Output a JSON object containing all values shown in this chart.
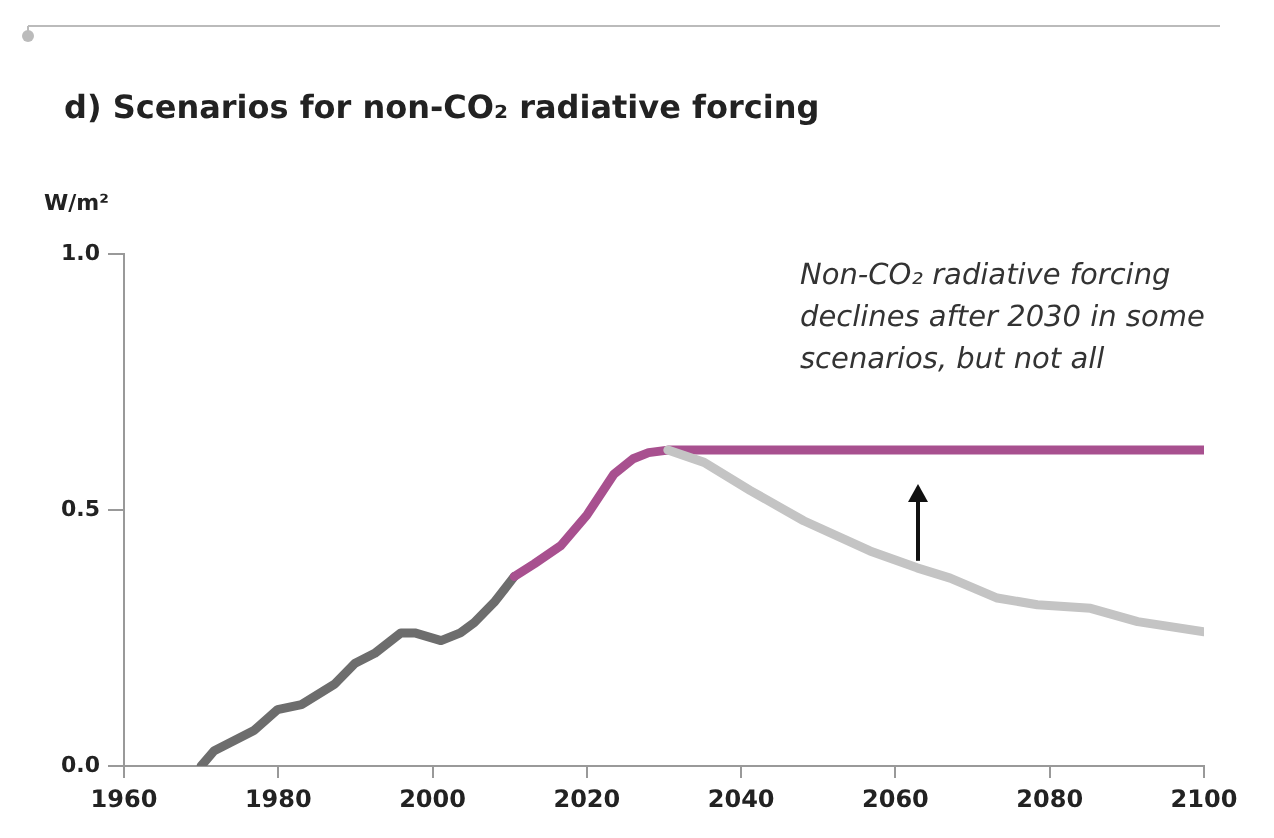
{
  "chart_data": {
    "type": "line",
    "title": "d) Scenarios for non-CO₂ radiative forcing",
    "ylabel": "W/m²",
    "xlim": [
      1960,
      2100
    ],
    "xticks": [
      1960,
      1980,
      2000,
      2020,
      2040,
      2060,
      2080,
      2100
    ],
    "ylim": [
      0,
      1
    ],
    "yticks": [
      {
        "value": 0,
        "label": "0.0"
      },
      {
        "value": 0.5,
        "label": "0.5"
      },
      {
        "value": 1,
        "label": "1.0"
      }
    ],
    "legend": false,
    "marker": "none",
    "line_style": "solid",
    "annotations": [
      "Non-CO₂ radiative forcing declines after 2030 in some scenarios, but not all"
    ],
    "series": [
      {
        "color": "#c4c4c4",
        "x": [
          2030.5,
          2035.2,
          2041.2,
          2048.1,
          2056.7,
          2062.8,
          2067.1,
          2073.2,
          2078.4,
          2085.3,
          2091.4,
          2100
        ],
        "values": [
          0.617,
          0.593,
          0.538,
          0.479,
          0.42,
          0.387,
          0.367,
          0.328,
          0.315,
          0.308,
          0.282,
          0.262
        ]
      },
      {
        "color": "#a8508f",
        "x": [
          2010.6,
          2013.2,
          2016.6,
          2020,
          2023.5,
          2026,
          2028,
          2030.5,
          2100
        ],
        "values": [
          0.37,
          0.395,
          0.43,
          0.49,
          0.57,
          0.6,
          0.612,
          0.617,
          0.617
        ]
      },
      {
        "color": "#6d6d6d",
        "x": [
          1970,
          1971.7,
          1976.9,
          1979.9,
          1983,
          1987.3,
          1989.9,
          1992.5,
          1995.9,
          1997.7,
          2001.1,
          2003.6,
          2005.4,
          2008,
          2010.6
        ],
        "values": [
          0,
          0.03,
          0.07,
          0.11,
          0.12,
          0.16,
          0.2,
          0.22,
          0.26,
          0.26,
          0.245,
          0.26,
          0.28,
          0.32,
          0.37
        ]
      }
    ]
  }
}
